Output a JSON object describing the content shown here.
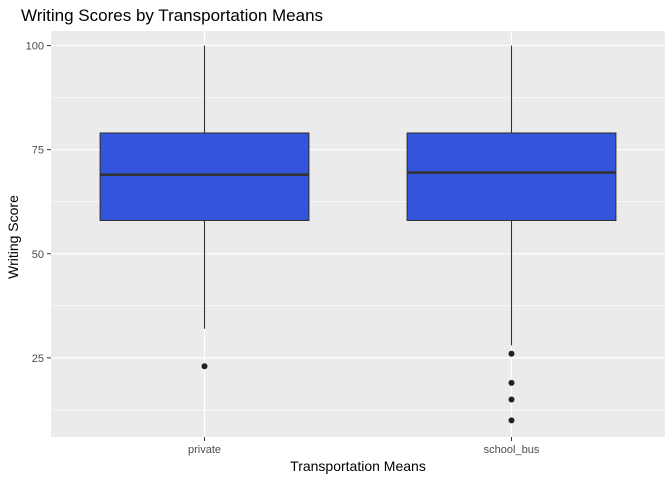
{
  "chart_data": {
    "type": "boxplot",
    "title": "Writing Scores by Transportation Means",
    "xlabel": "Transportation Means",
    "ylabel": "Writing Score",
    "categories": [
      "private",
      "school_bus"
    ],
    "ylim": [
      6,
      103.5
    ],
    "yticks": [
      25,
      50,
      75,
      100
    ],
    "grid": true,
    "legend": "none",
    "boxes": [
      {
        "category": "private",
        "min": 32,
        "q1": 58,
        "median": 69,
        "q3": 79,
        "max": 100,
        "outliers": [
          23
        ]
      },
      {
        "category": "school_bus",
        "min": 28,
        "q1": 58,
        "median": 69.5,
        "q3": 79,
        "max": 100,
        "outliers": [
          26,
          19,
          15,
          10
        ]
      }
    ],
    "colors": {
      "box_fill": "#3355dd",
      "box_line": "#333333",
      "panel_bg": "#ebebeb",
      "grid_line": "#ffffff",
      "outlier": "#222222"
    }
  }
}
